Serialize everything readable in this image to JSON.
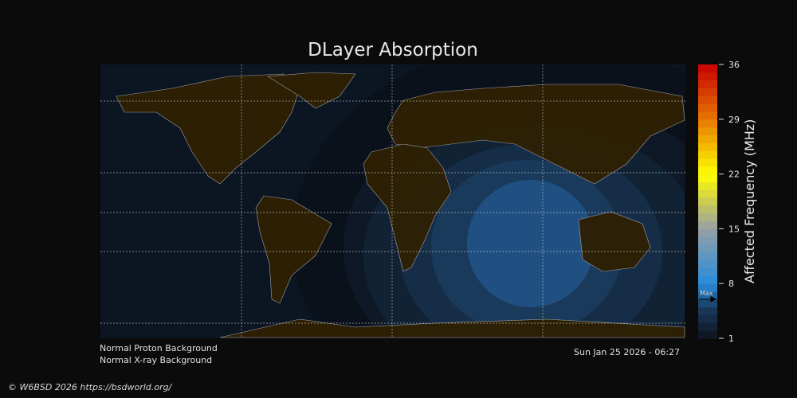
{
  "title": "DLayer Absorption",
  "colorbar": {
    "label": "Affected Frequency (MHz)",
    "ticks": [
      "36",
      "29",
      "22",
      "15",
      "8",
      "1"
    ],
    "range": [
      1,
      36
    ],
    "max_marker_label": "Max",
    "max_value": 6
  },
  "status": {
    "proton": "Normal Proton Background",
    "xray": "Normal X-ray Background",
    "timestamp": "Sun Jan 25 2026 - 06:27"
  },
  "footer": "© W6BSD 2026 https://bsdworld.org/",
  "colors": {
    "background": "#0b0b0b",
    "ocean": "#0c1522",
    "land": "#2e2003",
    "coast": "#a8a8a8"
  }
}
